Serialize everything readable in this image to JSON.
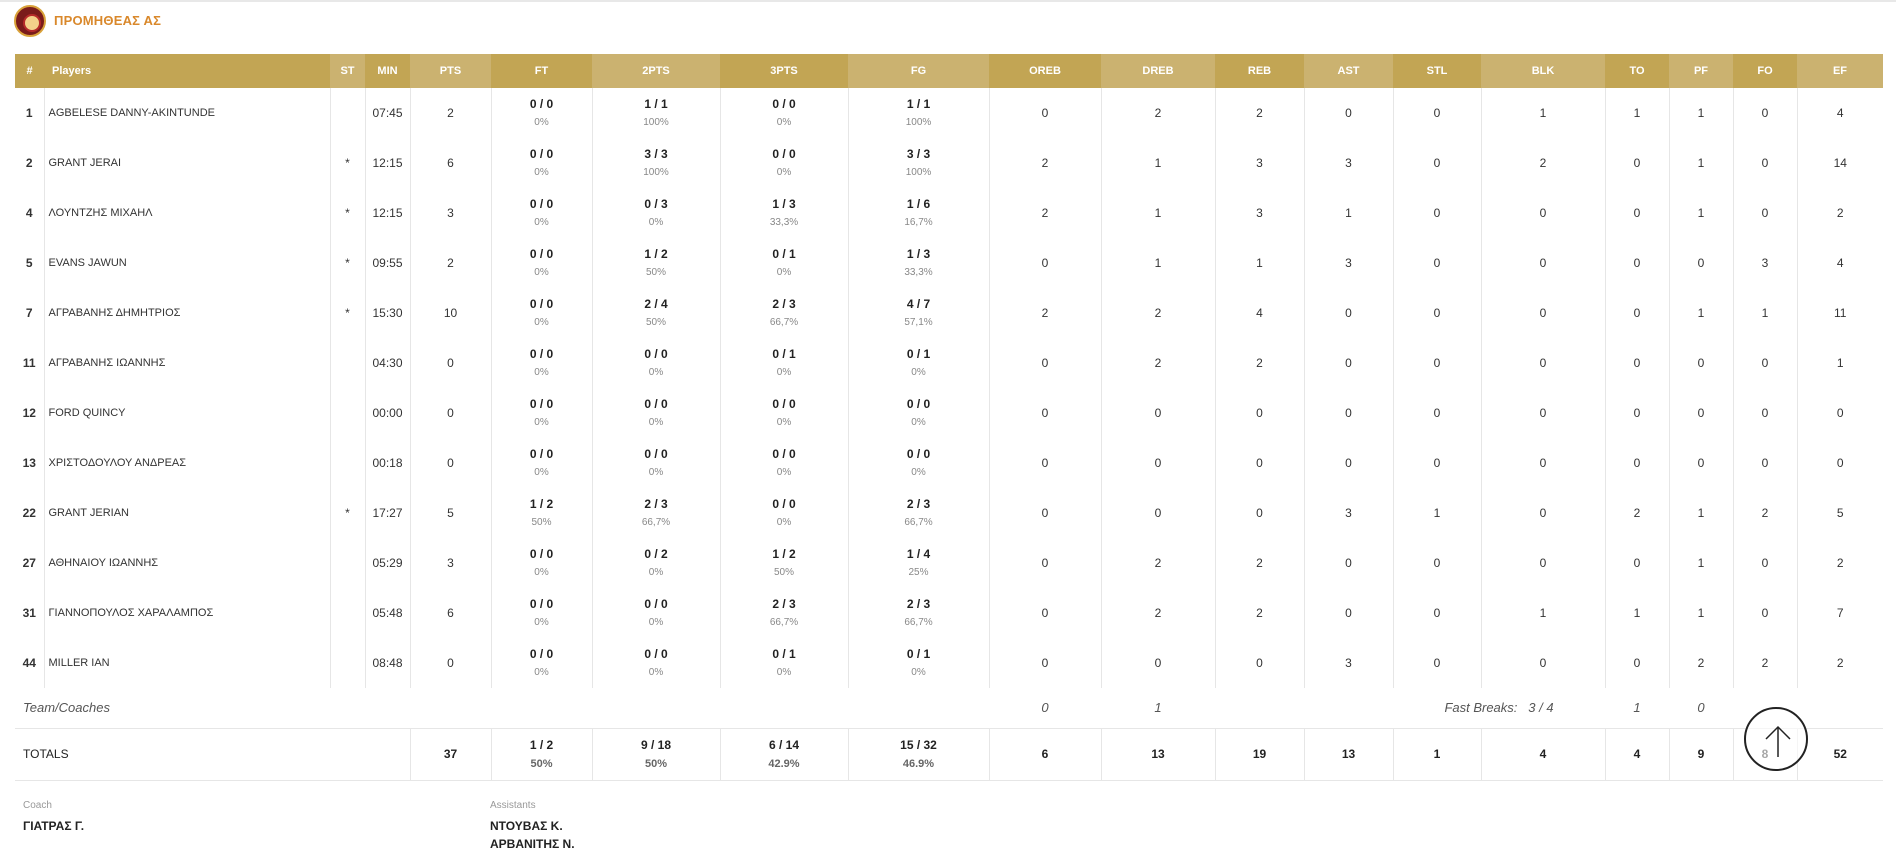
{
  "team": {
    "name": "ΠΡΟΜΗΘΕΑΣ ΑΣ"
  },
  "headers": [
    "#",
    "Players",
    "ST",
    "MIN",
    "PTS",
    "FT",
    "2PTS",
    "3PTS",
    "FG",
    "OREB",
    "DREB",
    "REB",
    "AST",
    "STL",
    "BLK",
    "TO",
    "PF",
    "FO",
    "EF"
  ],
  "players": [
    {
      "num": "1",
      "name": "AGBELESE DANNY-AKINTUNDE",
      "st": "",
      "min": "07:45",
      "pts": "2",
      "ft": "0 / 0",
      "ft_pct": "0%",
      "p2": "1 / 1",
      "p2_pct": "100%",
      "p3": "0 / 0",
      "p3_pct": "0%",
      "fg": "1 / 1",
      "fg_pct": "100%",
      "oreb": "0",
      "dreb": "2",
      "reb": "2",
      "ast": "0",
      "stl": "0",
      "blk": "1",
      "to": "1",
      "pf": "1",
      "fo": "0",
      "ef": "4"
    },
    {
      "num": "2",
      "name": "GRANT JERAI",
      "st": "*",
      "min": "12:15",
      "pts": "6",
      "ft": "0 / 0",
      "ft_pct": "0%",
      "p2": "3 / 3",
      "p2_pct": "100%",
      "p3": "0 / 0",
      "p3_pct": "0%",
      "fg": "3 / 3",
      "fg_pct": "100%",
      "oreb": "2",
      "dreb": "1",
      "reb": "3",
      "ast": "3",
      "stl": "0",
      "blk": "2",
      "to": "0",
      "pf": "1",
      "fo": "0",
      "ef": "14"
    },
    {
      "num": "4",
      "name": "ΛΟΥΝΤΖΗΣ ΜΙΧΑΗΛ",
      "st": "*",
      "min": "12:15",
      "pts": "3",
      "ft": "0 / 0",
      "ft_pct": "0%",
      "p2": "0 / 3",
      "p2_pct": "0%",
      "p3": "1 / 3",
      "p3_pct": "33,3%",
      "fg": "1 / 6",
      "fg_pct": "16,7%",
      "oreb": "2",
      "dreb": "1",
      "reb": "3",
      "ast": "1",
      "stl": "0",
      "blk": "0",
      "to": "0",
      "pf": "1",
      "fo": "0",
      "ef": "2"
    },
    {
      "num": "5",
      "name": "EVANS JAWUN",
      "st": "*",
      "min": "09:55",
      "pts": "2",
      "ft": "0 / 0",
      "ft_pct": "0%",
      "p2": "1 / 2",
      "p2_pct": "50%",
      "p3": "0 / 1",
      "p3_pct": "0%",
      "fg": "1 / 3",
      "fg_pct": "33,3%",
      "oreb": "0",
      "dreb": "1",
      "reb": "1",
      "ast": "3",
      "stl": "0",
      "blk": "0",
      "to": "0",
      "pf": "0",
      "fo": "3",
      "ef": "4"
    },
    {
      "num": "7",
      "name": "ΑΓΡΑΒΑΝΗΣ ΔΗΜΗΤΡΙΟΣ",
      "st": "*",
      "min": "15:30",
      "pts": "10",
      "ft": "0 / 0",
      "ft_pct": "0%",
      "p2": "2 / 4",
      "p2_pct": "50%",
      "p3": "2 / 3",
      "p3_pct": "66,7%",
      "fg": "4 / 7",
      "fg_pct": "57,1%",
      "oreb": "2",
      "dreb": "2",
      "reb": "4",
      "ast": "0",
      "stl": "0",
      "blk": "0",
      "to": "0",
      "pf": "1",
      "fo": "1",
      "ef": "11"
    },
    {
      "num": "11",
      "name": "ΑΓΡΑΒΑΝΗΣ ΙΩΑΝΝΗΣ",
      "st": "",
      "min": "04:30",
      "pts": "0",
      "ft": "0 / 0",
      "ft_pct": "0%",
      "p2": "0 / 0",
      "p2_pct": "0%",
      "p3": "0 / 1",
      "p3_pct": "0%",
      "fg": "0 / 1",
      "fg_pct": "0%",
      "oreb": "0",
      "dreb": "2",
      "reb": "2",
      "ast": "0",
      "stl": "0",
      "blk": "0",
      "to": "0",
      "pf": "0",
      "fo": "0",
      "ef": "1"
    },
    {
      "num": "12",
      "name": "FORD QUINCY",
      "st": "",
      "min": "00:00",
      "pts": "0",
      "ft": "0 / 0",
      "ft_pct": "0%",
      "p2": "0 / 0",
      "p2_pct": "0%",
      "p3": "0 / 0",
      "p3_pct": "0%",
      "fg": "0 / 0",
      "fg_pct": "0%",
      "oreb": "0",
      "dreb": "0",
      "reb": "0",
      "ast": "0",
      "stl": "0",
      "blk": "0",
      "to": "0",
      "pf": "0",
      "fo": "0",
      "ef": "0"
    },
    {
      "num": "13",
      "name": "ΧΡΙΣΤΟΔΟΥΛΟΥ ΑΝΔΡΕΑΣ",
      "st": "",
      "min": "00:18",
      "pts": "0",
      "ft": "0 / 0",
      "ft_pct": "0%",
      "p2": "0 / 0",
      "p2_pct": "0%",
      "p3": "0 / 0",
      "p3_pct": "0%",
      "fg": "0 / 0",
      "fg_pct": "0%",
      "oreb": "0",
      "dreb": "0",
      "reb": "0",
      "ast": "0",
      "stl": "0",
      "blk": "0",
      "to": "0",
      "pf": "0",
      "fo": "0",
      "ef": "0"
    },
    {
      "num": "22",
      "name": "GRANT JERIAN",
      "st": "*",
      "min": "17:27",
      "pts": "5",
      "ft": "1 / 2",
      "ft_pct": "50%",
      "p2": "2 / 3",
      "p2_pct": "66,7%",
      "p3": "0 / 0",
      "p3_pct": "0%",
      "fg": "2 / 3",
      "fg_pct": "66,7%",
      "oreb": "0",
      "dreb": "0",
      "reb": "0",
      "ast": "3",
      "stl": "1",
      "blk": "0",
      "to": "2",
      "pf": "1",
      "fo": "2",
      "ef": "5"
    },
    {
      "num": "27",
      "name": "ΑΘΗΝΑΙΟΥ ΙΩΑΝΝΗΣ",
      "st": "",
      "min": "05:29",
      "pts": "3",
      "ft": "0 / 0",
      "ft_pct": "0%",
      "p2": "0 / 2",
      "p2_pct": "0%",
      "p3": "1 / 2",
      "p3_pct": "50%",
      "fg": "1 / 4",
      "fg_pct": "25%",
      "oreb": "0",
      "dreb": "2",
      "reb": "2",
      "ast": "0",
      "stl": "0",
      "blk": "0",
      "to": "0",
      "pf": "1",
      "fo": "0",
      "ef": "2"
    },
    {
      "num": "31",
      "name": "ΓΙΑΝΝΟΠΟΥΛΟΣ ΧΑΡΑΛΑΜΠΟΣ",
      "st": "",
      "min": "05:48",
      "pts": "6",
      "ft": "0 / 0",
      "ft_pct": "0%",
      "p2": "0 / 0",
      "p2_pct": "0%",
      "p3": "2 / 3",
      "p3_pct": "66,7%",
      "fg": "2 / 3",
      "fg_pct": "66,7%",
      "oreb": "0",
      "dreb": "2",
      "reb": "2",
      "ast": "0",
      "stl": "0",
      "blk": "1",
      "to": "1",
      "pf": "1",
      "fo": "0",
      "ef": "7"
    },
    {
      "num": "44",
      "name": "MILLER IAN",
      "st": "",
      "min": "08:48",
      "pts": "0",
      "ft": "0 / 0",
      "ft_pct": "0%",
      "p2": "0 / 0",
      "p2_pct": "0%",
      "p3": "0 / 1",
      "p3_pct": "0%",
      "fg": "0 / 1",
      "fg_pct": "0%",
      "oreb": "0",
      "dreb": "0",
      "reb": "0",
      "ast": "3",
      "stl": "0",
      "blk": "0",
      "to": "0",
      "pf": "2",
      "fo": "2",
      "ef": "2"
    }
  ],
  "team_coaches": {
    "label": "Team/Coaches",
    "oreb": "0",
    "dreb": "1",
    "fast_breaks_label": "Fast Breaks:",
    "fast_breaks_value": "3 / 4",
    "to": "1",
    "pf": "0"
  },
  "totals": {
    "label": "TOTALS",
    "pts": "37",
    "ft": "1 / 2",
    "ft_pct": "50%",
    "p2": "9 / 18",
    "p2_pct": "50%",
    "p3": "6 / 14",
    "p3_pct": "42.9%",
    "fg": "15 / 32",
    "fg_pct": "46.9%",
    "oreb": "6",
    "dreb": "13",
    "reb": "19",
    "ast": "13",
    "stl": "1",
    "blk": "4",
    "to": "4",
    "pf": "9",
    "fo": "8",
    "ef": "52"
  },
  "staff": {
    "coach_label": "Coach",
    "coach_name": "ΓΙΑΤΡΑΣ Γ.",
    "assistants_label": "Assistants",
    "assistants": [
      "ΝΤΟΥΒΑΣ Κ.",
      "ΑΡΒΑΝΙΤΗΣ Ν."
    ]
  },
  "icons": {
    "team_logo": "team-logo",
    "scroll_top": "arrow-up-icon"
  }
}
